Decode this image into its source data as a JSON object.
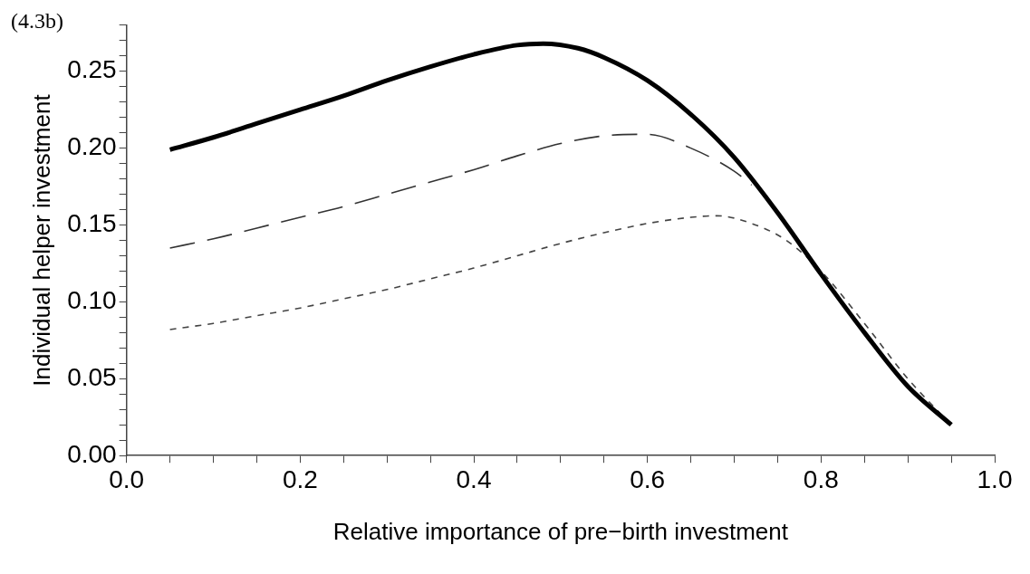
{
  "chart_data": {
    "type": "line",
    "xlabel": "Relative importance of pre−birth investment",
    "ylabel": "Individual helper investment",
    "annotations": [
      "(4.3b)"
    ],
    "xlim": [
      0,
      1
    ],
    "ylim": [
      0,
      0.28
    ],
    "xticks": [
      {
        "value": 0,
        "label": "0.0"
      },
      {
        "value": 0.05,
        "label": null
      },
      {
        "value": 0.1,
        "label": null
      },
      {
        "value": 0.15,
        "label": null
      },
      {
        "value": 0.2,
        "label": "0.2"
      },
      {
        "value": 0.25,
        "label": null
      },
      {
        "value": 0.3,
        "label": null
      },
      {
        "value": 0.35,
        "label": null
      },
      {
        "value": 0.4,
        "label": "0.4"
      },
      {
        "value": 0.45,
        "label": null
      },
      {
        "value": 0.5,
        "label": null
      },
      {
        "value": 0.55,
        "label": null
      },
      {
        "value": 0.6,
        "label": "0.6"
      },
      {
        "value": 0.65,
        "label": null
      },
      {
        "value": 0.7,
        "label": null
      },
      {
        "value": 0.75,
        "label": null
      },
      {
        "value": 0.8,
        "label": "0.8"
      },
      {
        "value": 0.85,
        "label": null
      },
      {
        "value": 0.9,
        "label": null
      },
      {
        "value": 0.95,
        "label": null
      },
      {
        "value": 1,
        "label": "1.0"
      }
    ],
    "yticks": [
      {
        "value": 0,
        "label": "0.00"
      },
      {
        "value": 0.01,
        "label": null
      },
      {
        "value": 0.02,
        "label": null
      },
      {
        "value": 0.03,
        "label": null
      },
      {
        "value": 0.04,
        "label": null
      },
      {
        "value": 0.05,
        "label": "0.05"
      },
      {
        "value": 0.06,
        "label": null
      },
      {
        "value": 0.07,
        "label": null
      },
      {
        "value": 0.08,
        "label": null
      },
      {
        "value": 0.09,
        "label": null
      },
      {
        "value": 0.1,
        "label": "0.10"
      },
      {
        "value": 0.11,
        "label": null
      },
      {
        "value": 0.12,
        "label": null
      },
      {
        "value": 0.13,
        "label": null
      },
      {
        "value": 0.14,
        "label": null
      },
      {
        "value": 0.15,
        "label": "0.15"
      },
      {
        "value": 0.16,
        "label": null
      },
      {
        "value": 0.17,
        "label": null
      },
      {
        "value": 0.18,
        "label": null
      },
      {
        "value": 0.19,
        "label": null
      },
      {
        "value": 0.2,
        "label": "0.20"
      },
      {
        "value": 0.21,
        "label": null
      },
      {
        "value": 0.22,
        "label": null
      },
      {
        "value": 0.23,
        "label": null
      },
      {
        "value": 0.24,
        "label": null
      },
      {
        "value": 0.25,
        "label": "0.25"
      },
      {
        "value": 0.26,
        "label": null
      },
      {
        "value": 0.27,
        "label": null
      },
      {
        "value": 0.28,
        "label": null
      }
    ],
    "grid": false,
    "legend": false,
    "marker": "none",
    "series": [
      {
        "color": "#000000",
        "line_style": "solid",
        "x": [
          0.05,
          0.1,
          0.15,
          0.2,
          0.25,
          0.3,
          0.35,
          0.4,
          0.45,
          0.48,
          0.52,
          0.55,
          0.6,
          0.65,
          0.7,
          0.75,
          0.8,
          0.85,
          0.9,
          0.95
        ],
        "values": [
          0.199,
          0.207,
          0.216,
          0.225,
          0.234,
          0.244,
          0.253,
          0.261,
          0.267,
          0.268,
          0.265,
          0.259,
          0.244,
          0.222,
          0.194,
          0.158,
          0.118,
          0.08,
          0.045,
          0.02
        ]
      },
      {
        "color": "#333333",
        "line_style": "dashed",
        "x": [
          0.05,
          0.1,
          0.15,
          0.2,
          0.25,
          0.3,
          0.35,
          0.4,
          0.45,
          0.5,
          0.55,
          0.6,
          0.65,
          0.7,
          0.72
        ],
        "values": [
          0.135,
          0.141,
          0.148,
          0.155,
          0.162,
          0.17,
          0.178,
          0.186,
          0.195,
          0.203,
          0.208,
          0.209,
          0.2,
          0.185,
          0.176
        ]
      },
      {
        "color": "#444444",
        "line_style": "dotted",
        "x": [
          0.05,
          0.1,
          0.15,
          0.2,
          0.25,
          0.3,
          0.35,
          0.4,
          0.45,
          0.5,
          0.55,
          0.6,
          0.65,
          0.68,
          0.72,
          0.76,
          0.8,
          0.85,
          0.9,
          0.95
        ],
        "values": [
          0.082,
          0.086,
          0.091,
          0.096,
          0.102,
          0.108,
          0.115,
          0.122,
          0.13,
          0.138,
          0.145,
          0.151,
          0.155,
          0.156,
          0.151,
          0.14,
          0.12,
          0.086,
          0.05,
          0.02
        ]
      }
    ]
  }
}
